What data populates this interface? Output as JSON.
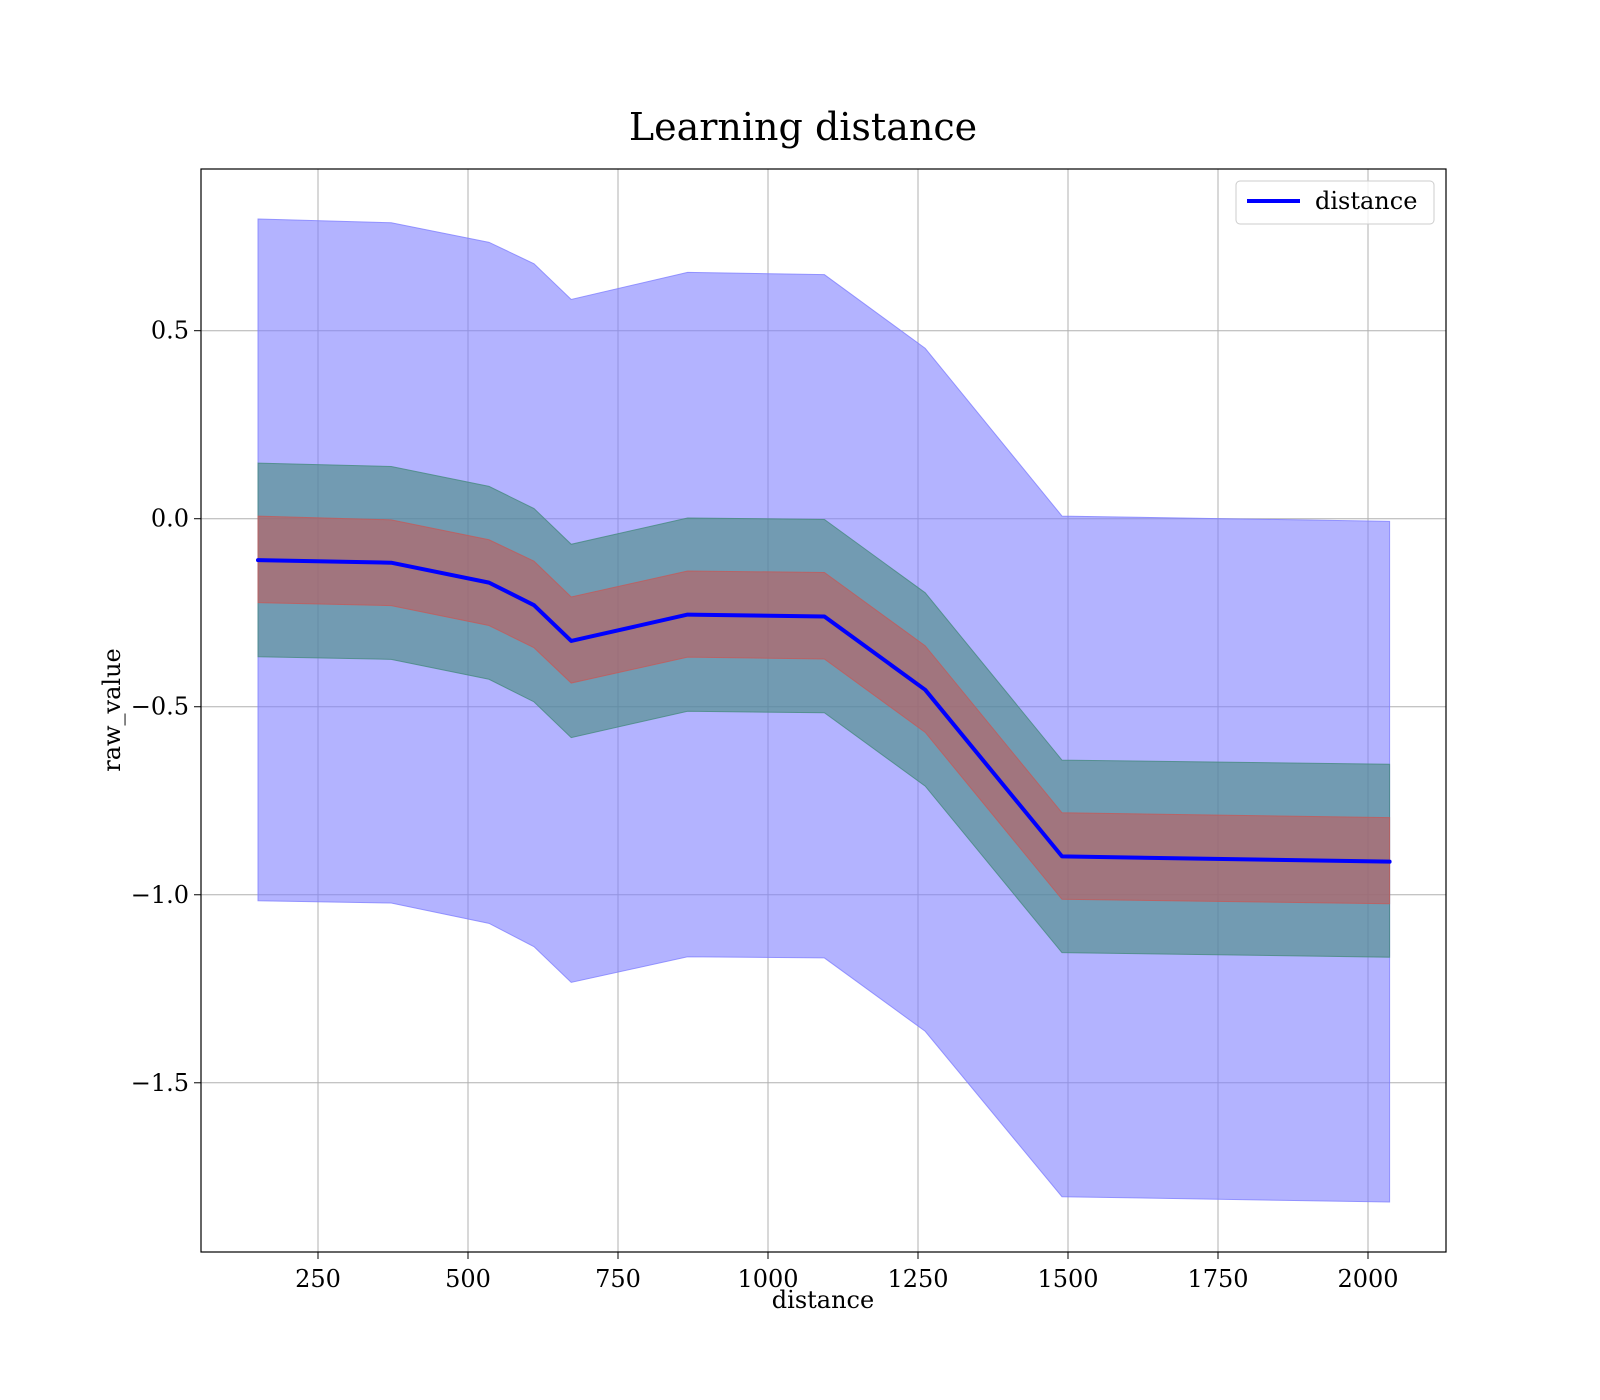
{
  "chart_data": {
    "type": "line",
    "title": "Learning distance",
    "xlabel": "distance",
    "ylabel": "raw_value",
    "xlim": [
      55,
      2130
    ],
    "ylim": [
      -1.95,
      0.93
    ],
    "xticks": [
      250,
      500,
      750,
      1000,
      1250,
      1500,
      1750,
      2000
    ],
    "xtick_labels": [
      "250",
      "500",
      "750",
      "1000",
      "1250",
      "1500",
      "1750",
      "2000"
    ],
    "yticks": [
      0.5,
      0.0,
      -0.5,
      -1.0,
      -1.5
    ],
    "ytick_labels": [
      "0.5",
      "0.0",
      "−0.5",
      "−1.0",
      "−1.5"
    ],
    "grid": true,
    "legend_position": "top-right",
    "x": [
      150,
      372,
      535,
      610,
      672,
      866,
      1094,
      1262,
      1490,
      2036
    ],
    "series": [
      {
        "name": "distance",
        "color": "#0000ff",
        "values": [
          -0.11,
          -0.117,
          -0.17,
          -0.23,
          -0.325,
          -0.255,
          -0.26,
          -0.455,
          -0.898,
          -0.912
        ]
      }
    ],
    "bands": [
      {
        "color": "#8080ff",
        "opacity": 0.6,
        "upper": [
          0.797,
          0.787,
          0.735,
          0.678,
          0.583,
          0.655,
          0.649,
          0.453,
          0.007,
          -0.007
        ],
        "lower": [
          -1.016,
          -1.022,
          -1.076,
          -1.138,
          -1.233,
          -1.165,
          -1.168,
          -1.363,
          -1.803,
          -1.817
        ]
      },
      {
        "color": "#468a7f",
        "opacity": 0.6,
        "upper": [
          0.148,
          0.139,
          0.086,
          0.027,
          -0.068,
          0.002,
          -0.002,
          -0.197,
          -0.642,
          -0.653
        ],
        "lower": [
          -0.367,
          -0.374,
          -0.427,
          -0.487,
          -0.582,
          -0.512,
          -0.516,
          -0.711,
          -1.154,
          -1.166
        ]
      },
      {
        "color": "#c25b5b",
        "opacity": 0.6,
        "upper": [
          0.007,
          -0.003,
          -0.056,
          -0.113,
          -0.208,
          -0.139,
          -0.143,
          -0.338,
          -0.782,
          -0.795
        ],
        "lower": [
          -0.223,
          -0.231,
          -0.284,
          -0.343,
          -0.437,
          -0.368,
          -0.373,
          -0.568,
          -1.012,
          -1.024
        ]
      }
    ]
  }
}
